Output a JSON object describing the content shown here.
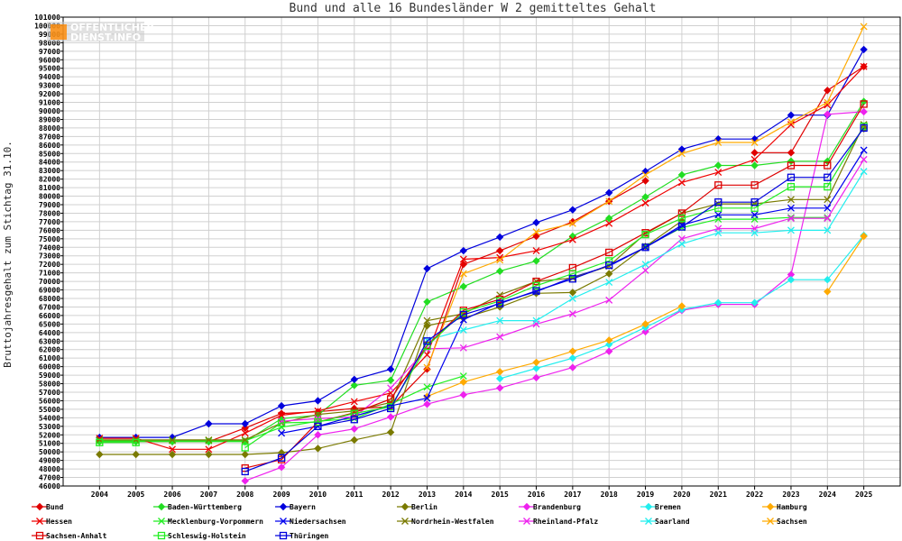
{
  "logo": {
    "line1": "OFFENTLICHER",
    "line2": "DIENST.INFO"
  },
  "chart_data": {
    "type": "line",
    "title": "Bund und alle 16 Bundesländer W 2 gemitteltes Gehalt",
    "xlabel": "",
    "ylabel": "Bruttojahresgehalt zum Stichtag 31.10.",
    "x": [
      2004,
      2005,
      2006,
      2007,
      2008,
      2009,
      2010,
      2011,
      2012,
      2013,
      2014,
      2015,
      2016,
      2017,
      2018,
      2019,
      2020,
      2021,
      2022,
      2023,
      2024,
      2025
    ],
    "xlim": [
      2003,
      2026
    ],
    "ylim": [
      46000,
      101000
    ],
    "ytick_step": 1000,
    "grid": true,
    "legend_position": "bottom",
    "series": [
      {
        "name": "Bund",
        "color": "#e00000",
        "marker": "diamond",
        "values": [
          51200,
          51200,
          51200,
          51200,
          52800,
          54500,
          54700,
          55100,
          55300,
          59700,
          72000,
          73600,
          75300,
          77000,
          79400,
          81800,
          null,
          null,
          85100,
          85100,
          92400,
          95200
        ]
      },
      {
        "name": "Baden-Württemberg",
        "color": "#22dd22",
        "marker": "diamond",
        "values": [
          51200,
          51200,
          51200,
          51200,
          51200,
          53900,
          54300,
          57800,
          58400,
          67600,
          69400,
          71200,
          72400,
          75300,
          77400,
          79900,
          82500,
          83600,
          83600,
          84100,
          84100,
          91100
        ]
      },
      {
        "name": "Bayern",
        "color": "#0000dd",
        "marker": "diamond",
        "values": [
          51700,
          51700,
          51700,
          53300,
          53300,
          55400,
          56000,
          58500,
          59700,
          71500,
          73600,
          75200,
          76900,
          78400,
          80400,
          82900,
          85500,
          86700,
          86700,
          89500,
          89500,
          97200
        ]
      },
      {
        "name": "Berlin",
        "color": "#7a7a00",
        "marker": "diamond",
        "values": [
          49700,
          49700,
          49700,
          49700,
          49700,
          49900,
          50400,
          51400,
          52300,
          64800,
          65700,
          67000,
          68600,
          68700,
          70900,
          74100,
          77100,
          null,
          null,
          null,
          null,
          87900
        ]
      },
      {
        "name": "Brandenburg",
        "color": "#ee22ee",
        "marker": "diamond",
        "values": [
          null,
          null,
          null,
          null,
          46600,
          48200,
          52000,
          52700,
          54100,
          55600,
          56700,
          57500,
          58700,
          59900,
          61800,
          64100,
          66600,
          67300,
          67300,
          70800,
          89600,
          89900
        ]
      },
      {
        "name": "Bremen",
        "color": "#22eeee",
        "marker": "diamond",
        "values": [
          null,
          null,
          null,
          null,
          null,
          null,
          null,
          null,
          null,
          null,
          null,
          58600,
          59800,
          61000,
          62600,
          64600,
          66700,
          67500,
          67500,
          70200,
          70200,
          75400
        ]
      },
      {
        "name": "Hamburg",
        "color": "#ffaa00",
        "marker": "diamond",
        "values": [
          null,
          null,
          null,
          null,
          null,
          null,
          null,
          null,
          null,
          56500,
          58200,
          59400,
          60500,
          61800,
          63100,
          65000,
          67100,
          null,
          null,
          null,
          68800,
          75300
        ]
      },
      {
        "name": "Hessen",
        "color": "#ee0000",
        "marker": "x",
        "values": [
          51600,
          51600,
          50300,
          50300,
          52200,
          54300,
          54800,
          55900,
          56900,
          61400,
          72600,
          72800,
          73600,
          74900,
          76800,
          79200,
          81600,
          82800,
          84300,
          88400,
          90700,
          95200
        ]
      },
      {
        "name": "Mecklenburg-Vorpommern",
        "color": "#22ee22",
        "marker": "x",
        "values": [
          51300,
          51300,
          51300,
          51300,
          51300,
          52900,
          53600,
          53900,
          55600,
          57600,
          58900,
          null,
          null,
          null,
          null,
          74100,
          76300,
          77300,
          77300,
          77500,
          77500,
          null
        ]
      },
      {
        "name": "Niedersachsen",
        "color": "#0000ee",
        "marker": "x",
        "values": [
          null,
          null,
          null,
          null,
          null,
          52200,
          53000,
          54200,
          55400,
          56300,
          65500,
          67500,
          68800,
          70500,
          71800,
          74000,
          76600,
          77800,
          77800,
          78600,
          78600,
          85400
        ]
      },
      {
        "name": "Nordrhein-Westfalen",
        "color": "#7a7a00",
        "marker": "x",
        "values": [
          51400,
          51400,
          51400,
          51400,
          51400,
          53400,
          54400,
          54800,
          55800,
          65400,
          66200,
          68400,
          70000,
          70400,
          71800,
          75600,
          78000,
          79100,
          79100,
          79600,
          79600,
          88400
        ]
      },
      {
        "name": "Rheinland-Pfalz",
        "color": "#ee22ee",
        "marker": "x",
        "values": [
          null,
          null,
          null,
          null,
          null,
          53600,
          53900,
          54100,
          57500,
          62100,
          62200,
          63500,
          65000,
          66200,
          67800,
          71300,
          75000,
          76200,
          76200,
          77400,
          77400,
          84300
        ]
      },
      {
        "name": "Saarland",
        "color": "#22eeee",
        "marker": "x",
        "values": [
          null,
          null,
          null,
          null,
          null,
          null,
          null,
          null,
          null,
          63100,
          64300,
          65400,
          65400,
          68000,
          69900,
          72000,
          74400,
          75700,
          75700,
          76000,
          76000,
          82900
        ]
      },
      {
        "name": "Sachsen",
        "color": "#ffaa00",
        "marker": "x",
        "values": [
          null,
          null,
          null,
          null,
          null,
          null,
          null,
          null,
          null,
          59900,
          70900,
          72500,
          75800,
          76800,
          79400,
          82500,
          85000,
          86300,
          86300,
          88700,
          91000,
          99900
        ]
      },
      {
        "name": "Sachsen-Anhalt",
        "color": "#dd0000",
        "marker": "square",
        "values": [
          null,
          null,
          null,
          null,
          48100,
          49100,
          53500,
          54600,
          56200,
          62500,
          66600,
          67900,
          70000,
          71600,
          73400,
          75700,
          78000,
          81300,
          81300,
          83600,
          83600,
          90800
        ]
      },
      {
        "name": "Schleswig-Holstein",
        "color": "#22ee22",
        "marker": "square",
        "values": [
          51100,
          51100,
          null,
          null,
          50500,
          53400,
          53500,
          54500,
          55300,
          62400,
          66400,
          67700,
          69500,
          70900,
          72400,
          75500,
          77400,
          78600,
          78600,
          81100,
          81100,
          88200
        ]
      },
      {
        "name": "Thüringen",
        "color": "#0000dd",
        "marker": "square",
        "values": [
          null,
          null,
          null,
          null,
          47700,
          49300,
          53000,
          53800,
          55100,
          63000,
          66100,
          67400,
          68900,
          70300,
          71900,
          74000,
          76400,
          79300,
          79300,
          82200,
          82200,
          88000
        ]
      }
    ]
  }
}
